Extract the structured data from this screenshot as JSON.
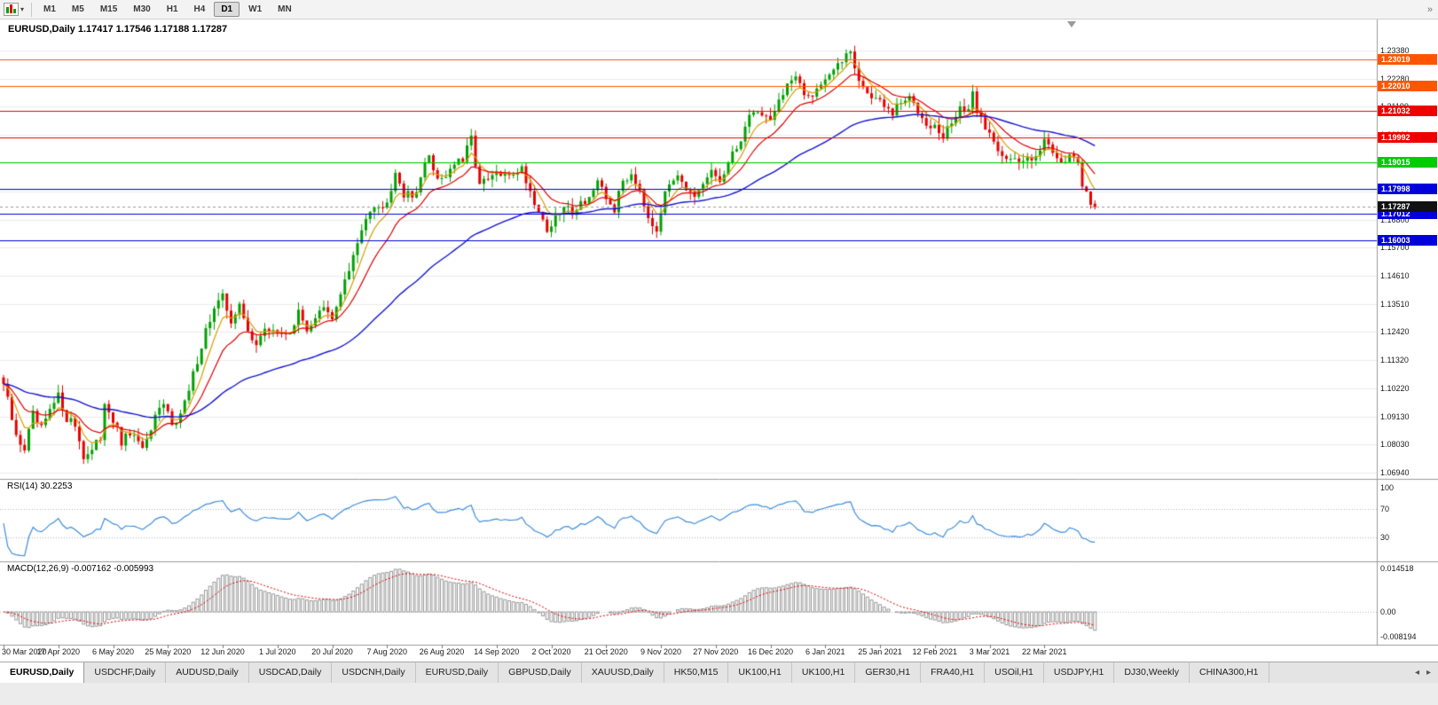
{
  "toolbar": {
    "caret": "▾",
    "overflow_icon": "»",
    "timeframes": [
      "M1",
      "M5",
      "M15",
      "M30",
      "H1",
      "H4",
      "D1",
      "W1",
      "MN"
    ],
    "active_timeframe": "D1"
  },
  "chart": {
    "title": "EURUSD,Daily 1.17417 1.17546 1.17188 1.17287",
    "symbol": "EURUSD",
    "period": "Daily",
    "open": "1.17417",
    "high": "1.17546",
    "low": "1.17188",
    "close": "1.17287",
    "price_axis_labels": [
      "1.23380",
      "1.22280",
      "1.21190",
      "1.20090",
      "1.19000",
      "1.17900",
      "1.16800",
      "1.15700",
      "1.14610",
      "1.13510",
      "1.12420",
      "1.11320",
      "1.10220",
      "1.09130",
      "1.08030",
      "1.06940"
    ],
    "horizontal_lines": [
      {
        "price": "1.23019",
        "color": "#ff5500"
      },
      {
        "price": "1.22010",
        "color": "#ff5500"
      },
      {
        "price": "1.21032",
        "color": "#ee0000"
      },
      {
        "price": "1.19992",
        "color": "#ee0000"
      },
      {
        "price": "1.19015",
        "color": "#00cc00"
      },
      {
        "price": "1.17998",
        "color": "#0000dd"
      },
      {
        "price": "1.17012",
        "color": "#0000dd"
      },
      {
        "price": "1.16003",
        "color": "#0000dd"
      }
    ],
    "current_price_tag": {
      "price": "1.17287",
      "color": "#111111"
    },
    "date_axis_labels": [
      "30 Mar 2020",
      "17 Apr 2020",
      "6 May 2020",
      "25 May 2020",
      "12 Jun 2020",
      "1 Jul 2020",
      "20 Jul 2020",
      "7 Aug 2020",
      "26 Aug 2020",
      "14 Sep 2020",
      "2 Oct 2020",
      "21 Oct 2020",
      "9 Nov 2020",
      "27 Nov 2020",
      "16 Dec 2020",
      "6 Jan 2021",
      "25 Jan 2021",
      "12 Feb 2021",
      "3 Mar 2021",
      "22 Mar 2021"
    ],
    "candle_count": 260,
    "price_anchors": [
      [
        0,
        1.104
      ],
      [
        3,
        1.083
      ],
      [
        5,
        1.079
      ],
      [
        7,
        1.0915
      ],
      [
        9,
        1.086
      ],
      [
        11,
        1.093
      ],
      [
        13,
        1.099
      ],
      [
        15,
        1.091
      ],
      [
        17,
        1.088
      ],
      [
        19,
        1.076
      ],
      [
        21,
        1.0775
      ],
      [
        23,
        1.083
      ],
      [
        24,
        1.0975
      ],
      [
        26,
        1.09
      ],
      [
        28,
        1.0805
      ],
      [
        30,
        1.085
      ],
      [
        32,
        1.08
      ],
      [
        34,
        1.081
      ],
      [
        36,
        1.09
      ],
      [
        38,
        1.0955
      ],
      [
        40,
        1.0895
      ],
      [
        42,
        1.092
      ],
      [
        44,
        1.101
      ],
      [
        46,
        1.1135
      ],
      [
        48,
        1.125
      ],
      [
        50,
        1.133
      ],
      [
        52,
        1.1375
      ],
      [
        54,
        1.129
      ],
      [
        56,
        1.134
      ],
      [
        58,
        1.124
      ],
      [
        60,
        1.1205
      ],
      [
        62,
        1.124
      ],
      [
        64,
        1.1255
      ],
      [
        66,
        1.1225
      ],
      [
        68,
        1.125
      ],
      [
        70,
        1.131
      ],
      [
        72,
        1.1255
      ],
      [
        74,
        1.13
      ],
      [
        76,
        1.133
      ],
      [
        78,
        1.1285
      ],
      [
        80,
        1.14
      ],
      [
        82,
        1.148
      ],
      [
        84,
        1.158
      ],
      [
        86,
        1.17
      ],
      [
        88,
        1.1745
      ],
      [
        90,
        1.172
      ],
      [
        92,
        1.181
      ],
      [
        93,
        1.1875
      ],
      [
        95,
        1.178
      ],
      [
        97,
        1.1765
      ],
      [
        99,
        1.1845
      ],
      [
        101,
        1.193
      ],
      [
        103,
        1.184
      ],
      [
        105,
        1.1855
      ],
      [
        107,
        1.19
      ],
      [
        109,
        1.1905
      ],
      [
        111,
        1.1995
      ],
      [
        113,
        1.1815
      ],
      [
        115,
        1.183
      ],
      [
        117,
        1.186
      ],
      [
        119,
        1.1845
      ],
      [
        121,
        1.1865
      ],
      [
        123,
        1.188
      ],
      [
        125,
        1.179
      ],
      [
        127,
        1.1715
      ],
      [
        129,
        1.164
      ],
      [
        131,
        1.168
      ],
      [
        133,
        1.1725
      ],
      [
        135,
        1.1715
      ],
      [
        137,
        1.1745
      ],
      [
        139,
        1.177
      ],
      [
        141,
        1.1815
      ],
      [
        143,
        1.176
      ],
      [
        145,
        1.172
      ],
      [
        147,
        1.183
      ],
      [
        149,
        1.186
      ],
      [
        151,
        1.1805
      ],
      [
        153,
        1.1695
      ],
      [
        155,
        1.1645
      ],
      [
        156,
        1.172
      ],
      [
        158,
        1.182
      ],
      [
        160,
        1.187
      ],
      [
        162,
        1.1805
      ],
      [
        164,
        1.175
      ],
      [
        166,
        1.181
      ],
      [
        168,
        1.1865
      ],
      [
        170,
        1.183
      ],
      [
        172,
        1.189
      ],
      [
        174,
        1.196
      ],
      [
        176,
        1.204
      ],
      [
        178,
        1.211
      ],
      [
        180,
        1.2085
      ],
      [
        182,
        1.208
      ],
      [
        184,
        1.214
      ],
      [
        186,
        1.221
      ],
      [
        188,
        1.2225
      ],
      [
        190,
        1.216
      ],
      [
        192,
        1.2175
      ],
      [
        194,
        1.2215
      ],
      [
        196,
        1.225
      ],
      [
        198,
        1.227
      ],
      [
        200,
        1.233
      ],
      [
        201,
        1.2345
      ],
      [
        203,
        1.222
      ],
      [
        205,
        1.217
      ],
      [
        207,
        1.2155
      ],
      [
        209,
        1.2115
      ],
      [
        211,
        1.209
      ],
      [
        213,
        1.2135
      ],
      [
        215,
        1.215
      ],
      [
        217,
        1.211
      ],
      [
        219,
        1.2065
      ],
      [
        221,
        1.204
      ],
      [
        223,
        1.1995
      ],
      [
        225,
        1.206
      ],
      [
        227,
        1.212
      ],
      [
        229,
        1.209
      ],
      [
        230,
        1.2165
      ],
      [
        231,
        1.211
      ],
      [
        233,
        1.204
      ],
      [
        235,
        1.1985
      ],
      [
        237,
        1.194
      ],
      [
        239,
        1.1915
      ],
      [
        241,
        1.1895
      ],
      [
        243,
        1.192
      ],
      [
        245,
        1.194
      ],
      [
        247,
        1.1985
      ],
      [
        249,
        1.195
      ],
      [
        251,
        1.191
      ],
      [
        253,
        1.193
      ],
      [
        255,
        1.188
      ],
      [
        256,
        1.182
      ],
      [
        257,
        1.1785
      ],
      [
        258,
        1.175
      ],
      [
        259,
        1.17287
      ]
    ],
    "colors": {
      "bull": "#00a000",
      "bear": "#e60000",
      "ma_fast": "#d99e00",
      "ma_mid": "#e00000",
      "ma_slow": "#1414cc",
      "grid": "#ececec"
    }
  },
  "rsi": {
    "label": "RSI(14) 30.2253",
    "period": 14,
    "value": "30.2253",
    "axis_labels": [
      "100",
      "70",
      "30"
    ],
    "levels": [
      70,
      30
    ],
    "color": "#3c8ddc"
  },
  "macd": {
    "label": "MACD(12,26,9) -0.007162 -0.005993",
    "fast": 12,
    "slow": 26,
    "signal": 9,
    "macd_value": "-0.007162",
    "signal_value": "-0.005993",
    "axis_labels": [
      "0.014518",
      "0.00",
      "-0.008194"
    ],
    "histogram_color": "#9a9a9a",
    "signal_color": "#e00000"
  },
  "tabs": {
    "scroll_left": "◂",
    "scroll_right": "▸",
    "active_index": 0,
    "items": [
      "EURUSD,Daily",
      "USDCHF,Daily",
      "AUDUSD,Daily",
      "USDCAD,Daily",
      "USDCNH,Daily",
      "EURUSD,Daily",
      "GBPUSD,Daily",
      "XAUUSD,Daily",
      "HK50,M15",
      "UK100,H1",
      "UK100,H1",
      "GER30,H1",
      "FRA40,H1",
      "USOil,H1",
      "USDJPY,H1",
      "DJ30,Weekly",
      "CHINA300,H1"
    ]
  }
}
